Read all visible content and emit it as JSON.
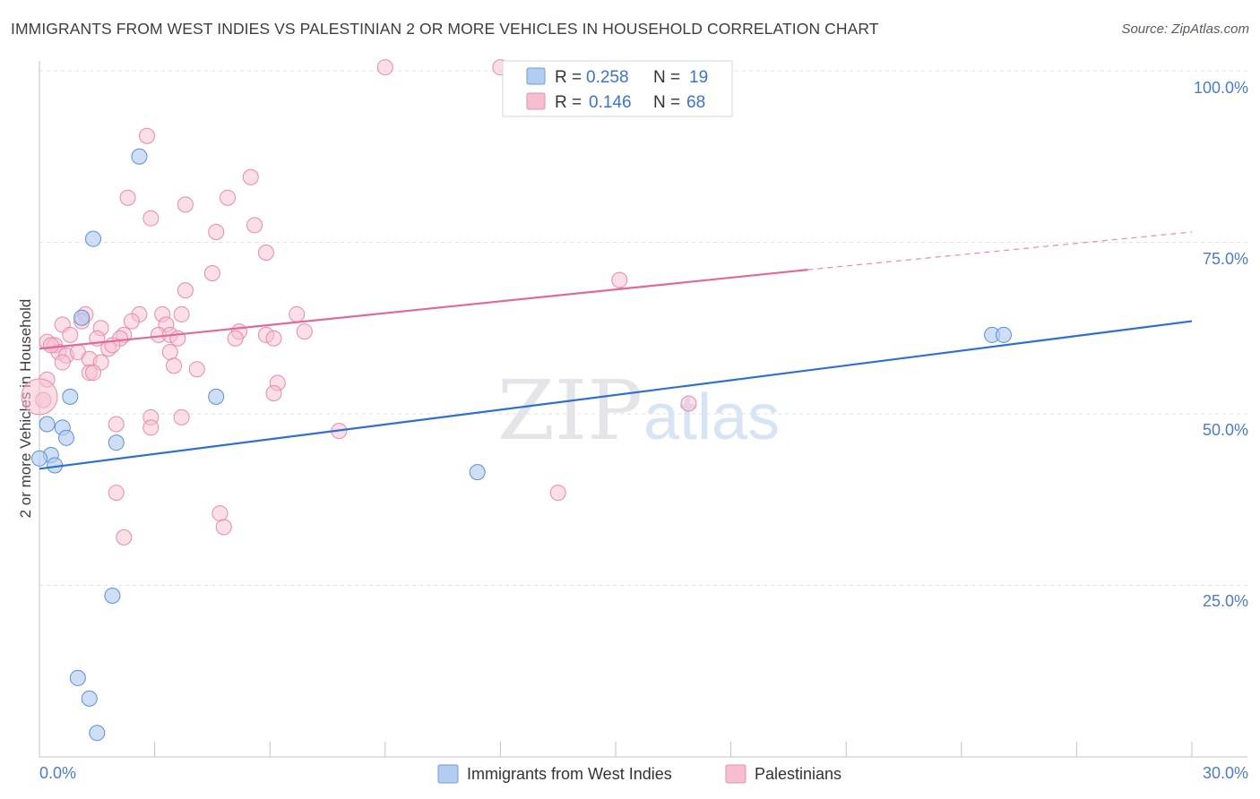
{
  "header": {
    "title": "IMMIGRANTS FROM WEST INDIES VS PALESTINIAN 2 OR MORE VEHICLES IN HOUSEHOLD CORRELATION CHART",
    "source": "Source: ZipAtlas.com"
  },
  "colors": {
    "blue": "#4a86d8",
    "blue_fill": "#b3cdf0",
    "pink": "#e86f98",
    "pink_fill": "#f6bfd0",
    "axis_text": "#4a7cc7"
  },
  "legend": {
    "series": [
      {
        "r_label": "R =",
        "r_value": "0.258",
        "n_label": "N =",
        "n_value": "19"
      },
      {
        "r_label": "R =",
        "r_value": "0.146",
        "n_label": "N =",
        "n_value": "68"
      }
    ]
  },
  "watermark": {
    "zip": "ZIP",
    "atlas": "atlas"
  },
  "chart_data": {
    "type": "scatter",
    "title": "IMMIGRANTS FROM WEST INDIES VS PALESTINIAN 2 OR MORE VEHICLES IN HOUSEHOLD CORRELATION CHART",
    "xlabel": "",
    "ylabel": "2 or more Vehicles in Household",
    "xlim": [
      0,
      30
    ],
    "ylim": [
      0,
      100
    ],
    "x_tick_labels": [
      "0.0%",
      "30.0%"
    ],
    "y_tick_labels": [
      "100.0%",
      "75.0%",
      "50.0%",
      "25.0%"
    ],
    "y_ticks": [
      100,
      75,
      50,
      25
    ],
    "series": [
      {
        "name": "Immigrants from West Indies",
        "color": "#4a86d8",
        "points": [
          [
            2.6,
            87.5
          ],
          [
            1.4,
            75.5
          ],
          [
            1.1,
            64.0
          ],
          [
            0.8,
            52.5
          ],
          [
            4.6,
            52.5
          ],
          [
            0.2,
            48.5
          ],
          [
            0.6,
            48.0
          ],
          [
            0.7,
            46.5
          ],
          [
            2.0,
            45.8
          ],
          [
            0.3,
            44.0
          ],
          [
            0.0,
            43.5
          ],
          [
            0.4,
            42.5
          ],
          [
            11.4,
            41.5
          ],
          [
            1.9,
            23.5
          ],
          [
            1.0,
            11.5
          ],
          [
            1.3,
            8.5
          ],
          [
            1.5,
            3.5
          ],
          [
            24.8,
            61.5
          ],
          [
            25.1,
            61.5
          ]
        ],
        "trend": {
          "x": [
            0,
            30
          ],
          "y": [
            42,
            63.5
          ]
        }
      },
      {
        "name": "Palestinians",
        "color": "#e86f98",
        "points": [
          [
            9.0,
            100.5
          ],
          [
            12.0,
            100.5
          ],
          [
            2.8,
            90.5
          ],
          [
            5.5,
            84.5
          ],
          [
            2.3,
            81.5
          ],
          [
            3.8,
            80.5
          ],
          [
            4.9,
            81.5
          ],
          [
            2.9,
            78.5
          ],
          [
            5.6,
            77.5
          ],
          [
            4.6,
            76.5
          ],
          [
            5.9,
            73.5
          ],
          [
            4.5,
            70.5
          ],
          [
            3.8,
            68.0
          ],
          [
            15.1,
            69.5
          ],
          [
            1.2,
            64.5
          ],
          [
            2.6,
            64.5
          ],
          [
            3.2,
            64.5
          ],
          [
            3.7,
            64.5
          ],
          [
            6.7,
            64.5
          ],
          [
            0.6,
            63.0
          ],
          [
            1.1,
            63.5
          ],
          [
            2.4,
            63.5
          ],
          [
            3.3,
            63.0
          ],
          [
            1.6,
            62.5
          ],
          [
            2.2,
            61.5
          ],
          [
            3.1,
            61.5
          ],
          [
            3.4,
            61.5
          ],
          [
            5.2,
            62.0
          ],
          [
            6.9,
            62.0
          ],
          [
            0.8,
            61.5
          ],
          [
            1.5,
            61.0
          ],
          [
            2.1,
            61.0
          ],
          [
            5.1,
            61.0
          ],
          [
            5.9,
            61.5
          ],
          [
            6.1,
            61.0
          ],
          [
            0.2,
            60.5
          ],
          [
            0.4,
            60.0
          ],
          [
            1.8,
            59.5
          ],
          [
            0.5,
            59.0
          ],
          [
            0.7,
            58.5
          ],
          [
            1.0,
            59.0
          ],
          [
            3.4,
            59.0
          ],
          [
            1.3,
            58.0
          ],
          [
            1.6,
            57.5
          ],
          [
            0.6,
            57.5
          ],
          [
            3.5,
            57.0
          ],
          [
            4.1,
            56.5
          ],
          [
            1.3,
            56.0
          ],
          [
            1.4,
            56.0
          ],
          [
            6.2,
            54.5
          ],
          [
            0.2,
            55.0
          ],
          [
            6.1,
            53.0
          ],
          [
            0.1,
            52.0
          ],
          [
            16.9,
            51.5
          ],
          [
            2.9,
            49.5
          ],
          [
            3.7,
            49.5
          ],
          [
            2.0,
            48.5
          ],
          [
            2.9,
            48.0
          ],
          [
            7.8,
            47.5
          ],
          [
            2.0,
            38.5
          ],
          [
            13.5,
            38.5
          ],
          [
            4.7,
            35.5
          ],
          [
            4.8,
            33.5
          ],
          [
            2.2,
            32.0
          ],
          [
            0.0,
            52.5
          ],
          [
            0.3,
            60.0
          ],
          [
            1.9,
            60.0
          ],
          [
            3.6,
            61.0
          ]
        ],
        "trend": {
          "x": [
            0,
            20
          ],
          "y": [
            59.5,
            71
          ]
        },
        "trend_extension": {
          "x": [
            20,
            30
          ],
          "y": [
            71,
            76.5
          ]
        }
      }
    ]
  },
  "bottom_legend": {
    "items": [
      {
        "label": "Immigrants from West Indies"
      },
      {
        "label": "Palestinians"
      }
    ]
  }
}
